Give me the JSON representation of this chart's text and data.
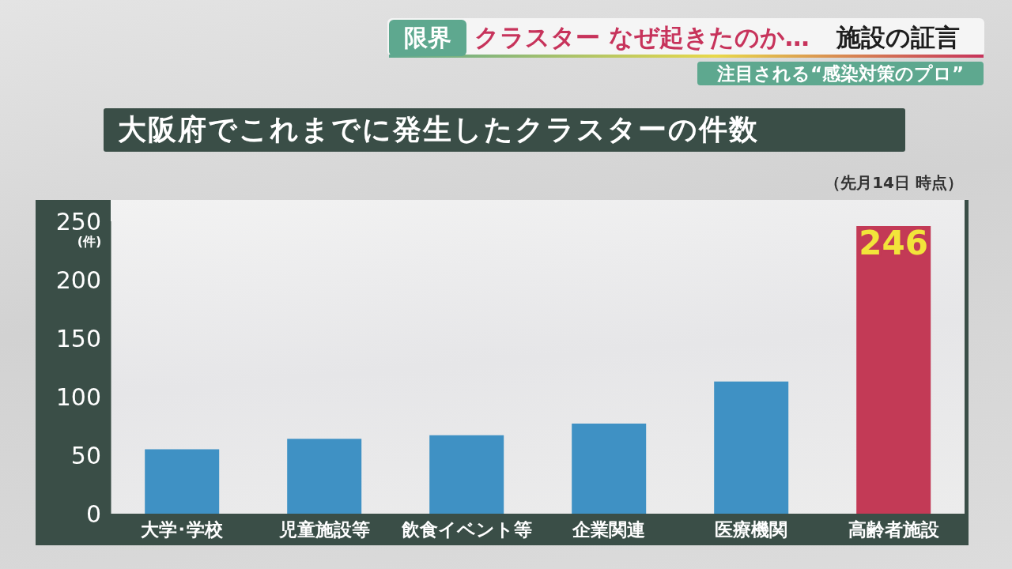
{
  "chart_data": {
    "type": "bar",
    "title": "大阪府でこれまでに発生したクラスターの件数",
    "subtitle": "（先月14日 時点）",
    "ylabel": "(件)",
    "annotations": [
      "限界",
      "クラスター なぜ起きたのか…",
      "施設の証言",
      "注目される“感染対策のプロ”"
    ],
    "categories": [
      "大学･学校",
      "児童施設等",
      "飲食イベント等",
      "企業関連",
      "医療機関",
      "高齢者施設"
    ],
    "values": [
      55,
      64,
      67,
      77,
      113,
      246
    ],
    "colors": [
      "#3f91c4",
      "#3f91c4",
      "#3f91c4",
      "#3f91c4",
      "#3f91c4",
      "#c33a56"
    ],
    "value_labels": [
      null,
      null,
      null,
      null,
      null,
      "246"
    ],
    "ylim": [
      0,
      250
    ],
    "yticks": [
      0,
      50,
      100,
      150,
      200,
      250
    ]
  }
}
